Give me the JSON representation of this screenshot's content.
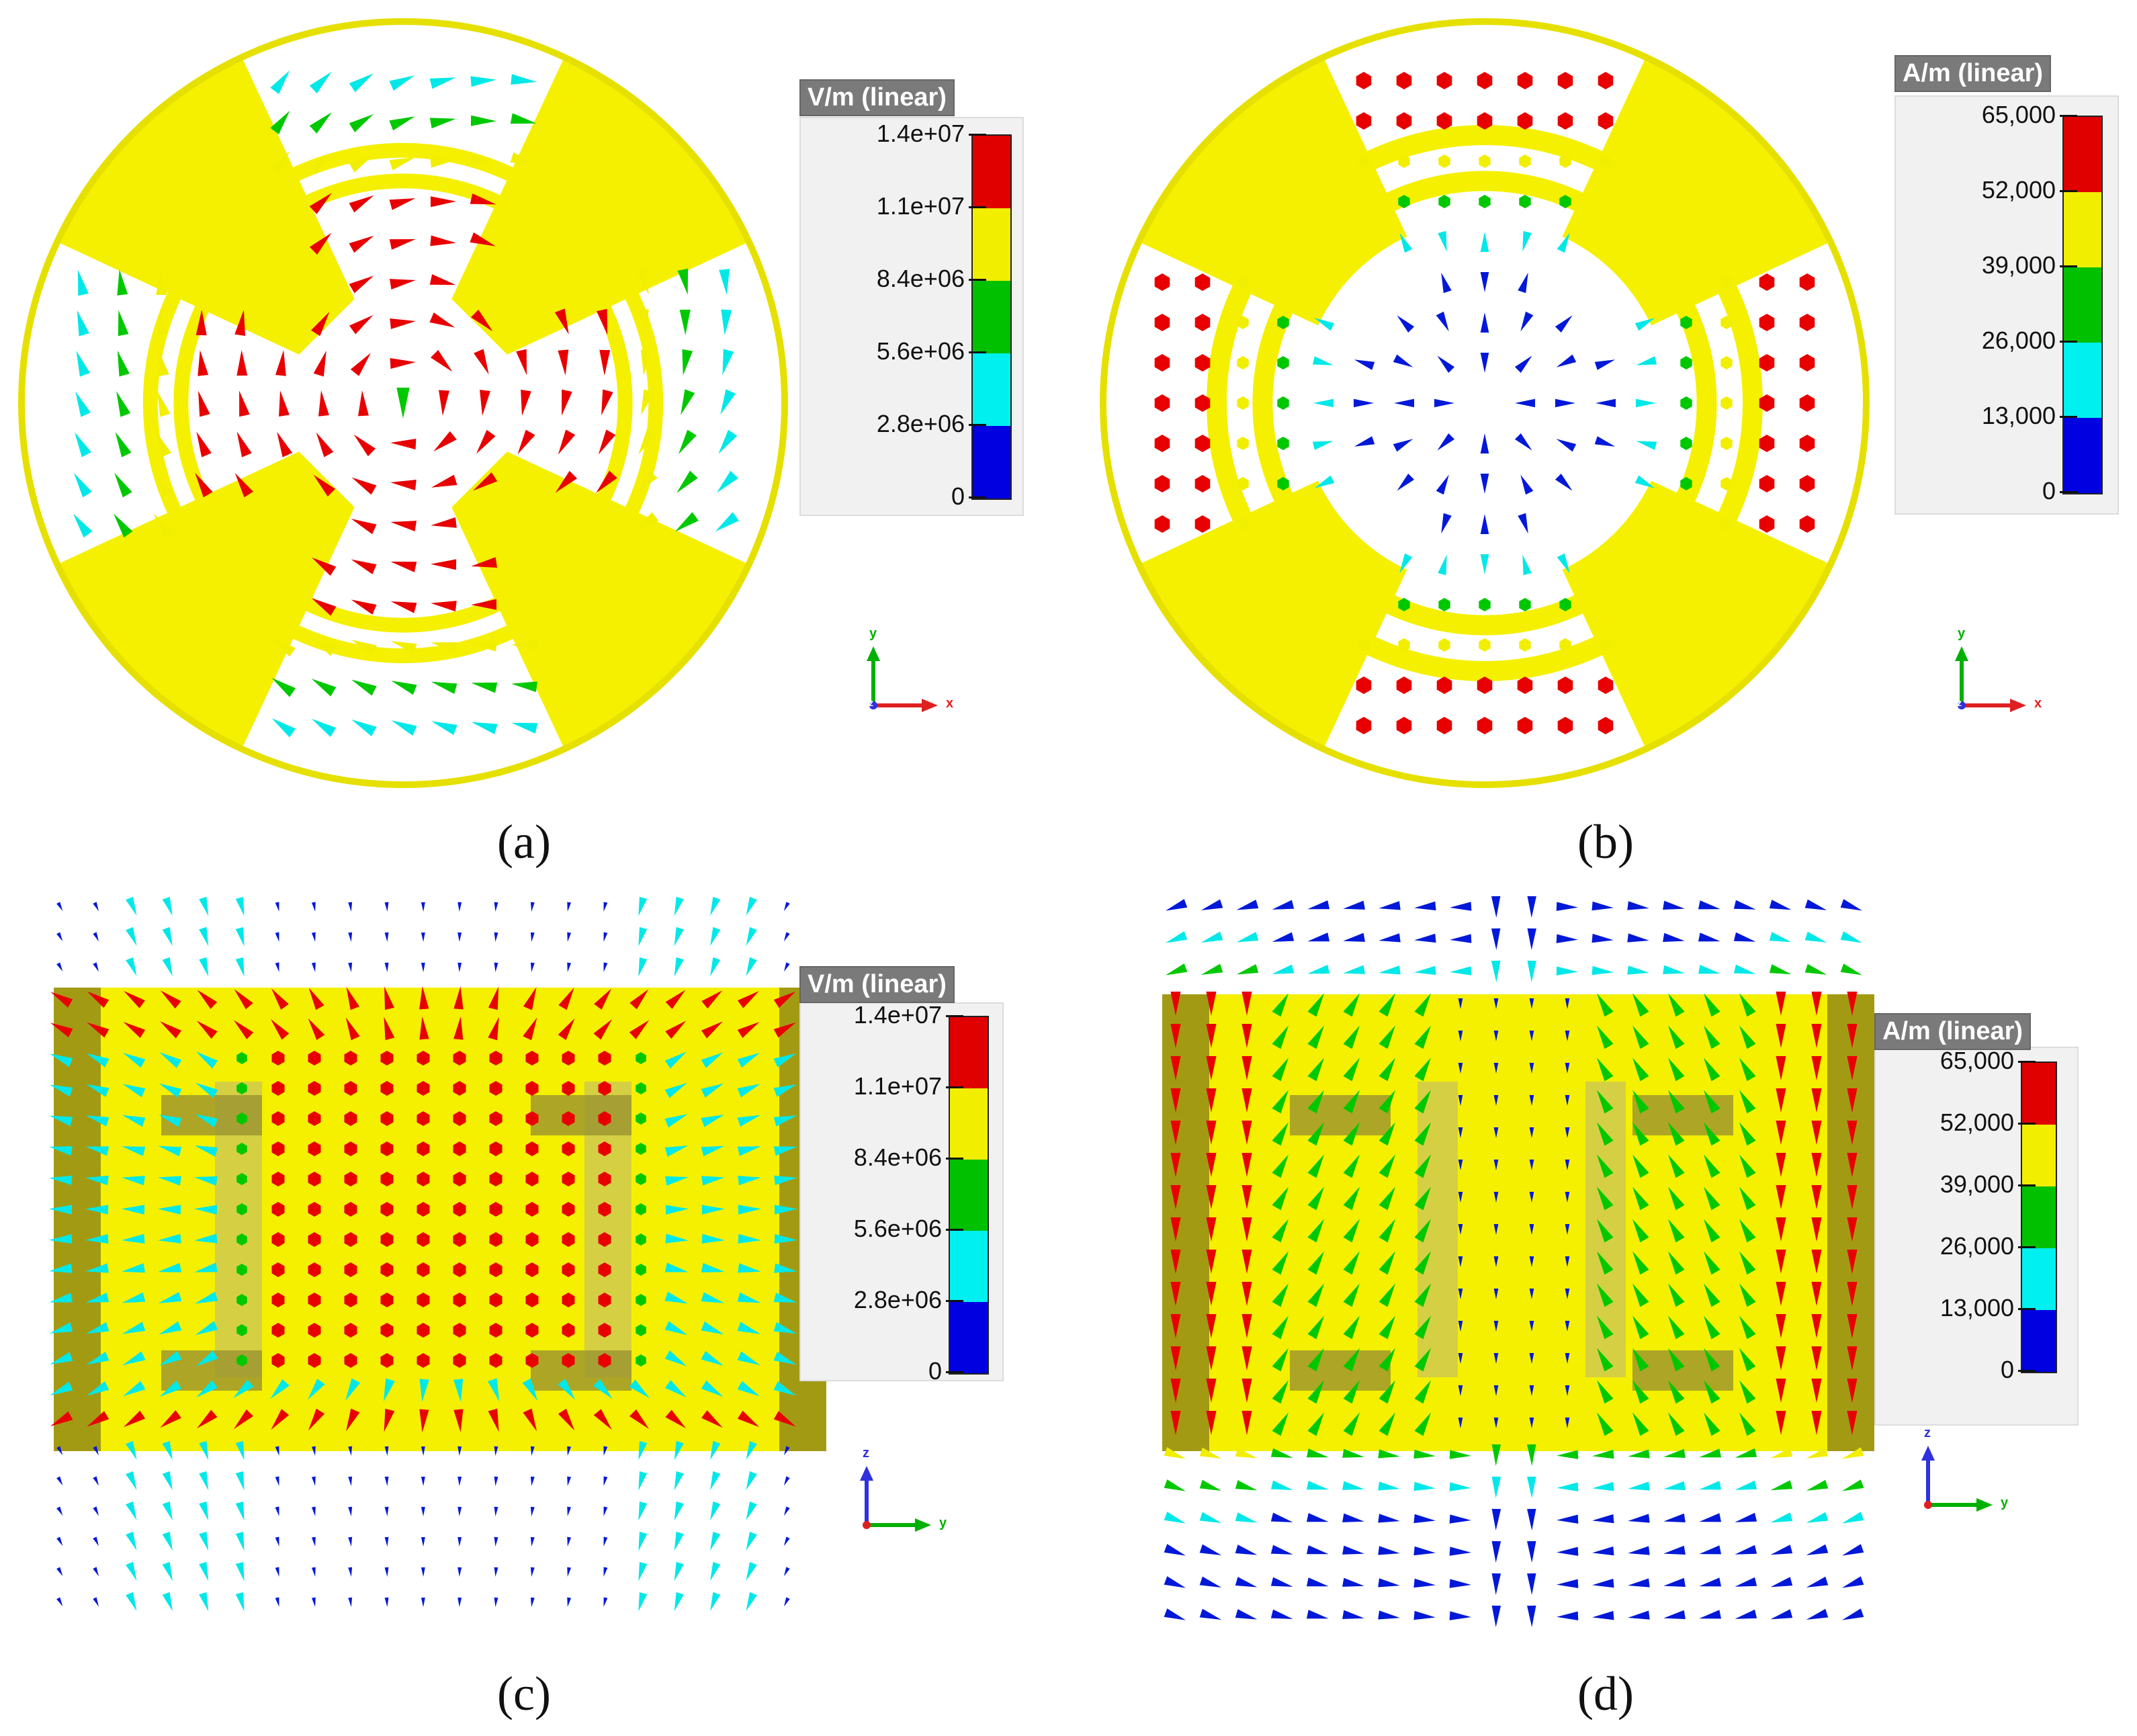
{
  "panels": [
    {
      "id": "a",
      "caption": "(a)",
      "field": "E",
      "view": "xy",
      "legend": {
        "title": "V/m (linear)",
        "ticks": [
          "1.4e+07",
          "1.1e+07",
          "8.4e+06",
          "5.6e+06",
          "2.8e+06",
          "0"
        ]
      },
      "axes": {
        "vertical": "y",
        "horizontal": "x",
        "out": "z"
      }
    },
    {
      "id": "b",
      "caption": "(b)",
      "field": "H",
      "view": "xy",
      "legend": {
        "title": "A/m (linear)",
        "ticks": [
          "65,000",
          "52,000",
          "39,000",
          "26,000",
          "13,000",
          "0"
        ]
      },
      "axes": {
        "vertical": "y",
        "horizontal": "x",
        "out": "z"
      }
    },
    {
      "id": "c",
      "caption": "(c)",
      "field": "E",
      "view": "yz",
      "legend": {
        "title": "V/m (linear)",
        "ticks": [
          "1.4e+07",
          "1.1e+07",
          "8.4e+06",
          "5.6e+06",
          "2.8e+06",
          "0"
        ]
      },
      "axes": {
        "vertical": "z",
        "horizontal": "y",
        "out": ""
      }
    },
    {
      "id": "d",
      "caption": "(d)",
      "field": "H",
      "view": "yz",
      "legend": {
        "title": "A/m (linear)",
        "ticks": [
          "65,000",
          "52,000",
          "39,000",
          "26,000",
          "13,000",
          "0"
        ]
      },
      "axes": {
        "vertical": "z",
        "horizontal": "y",
        "out": ""
      }
    }
  ],
  "colorscale": {
    "bands": [
      "#e00000",
      "#f2ee00",
      "#00c000",
      "#00f0f0",
      "#0000e0"
    ],
    "red": "#e80000",
    "yellow": "#f2ee00",
    "green": "#00c800",
    "cyan": "#00e8e8",
    "blue": "#0018d8",
    "body_yellow": "#f4f000",
    "body_dark": "#a39a14"
  }
}
